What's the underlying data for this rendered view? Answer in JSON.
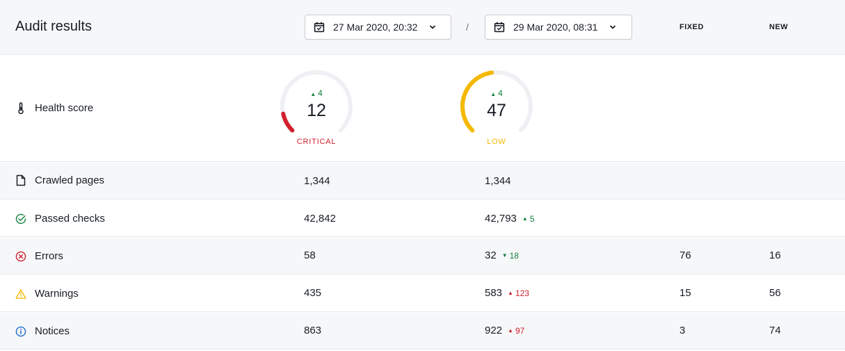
{
  "header": {
    "title": "Audit results",
    "date_from": "27 Mar 2020, 20:32",
    "separator": "/",
    "date_to": "29 Mar 2020, 08:31",
    "col_fixed": "FIXED",
    "col_new": "NEW"
  },
  "health": {
    "label": "Health score",
    "icon": "thermometer-icon",
    "before": {
      "score": "12",
      "delta": "4",
      "status": "CRITICAL",
      "color": "#d1202f",
      "fraction": 0.12
    },
    "after": {
      "score": "47",
      "delta": "4",
      "status": "LOW",
      "color": "#f5b800",
      "fraction": 0.47
    }
  },
  "rows": [
    {
      "label": "Crawled pages",
      "icon": "page-icon",
      "before": "1,344",
      "after": "1,344",
      "delta": "",
      "fixed": "",
      "new": ""
    },
    {
      "label": "Passed checks",
      "icon": "check-circle-icon",
      "before": "42,842",
      "after": "42,793",
      "delta": "5",
      "fixed": "",
      "new": ""
    },
    {
      "label": "Errors",
      "icon": "error-icon",
      "before": "58",
      "after": "32",
      "delta": "18",
      "fixed": "76",
      "new": "16"
    },
    {
      "label": "Warnings",
      "icon": "warning-icon",
      "before": "435",
      "after": "583",
      "delta": "123",
      "fixed": "15",
      "new": "56"
    },
    {
      "label": "Notices",
      "icon": "info-icon",
      "before": "863",
      "after": "922",
      "delta": "97",
      "fixed": "3",
      "new": "74"
    }
  ],
  "colors": {
    "critical": "#d1202f",
    "low": "#f5b800",
    "positive": "#14803c",
    "negative": "#d1202f",
    "track": "#eef0f3"
  }
}
